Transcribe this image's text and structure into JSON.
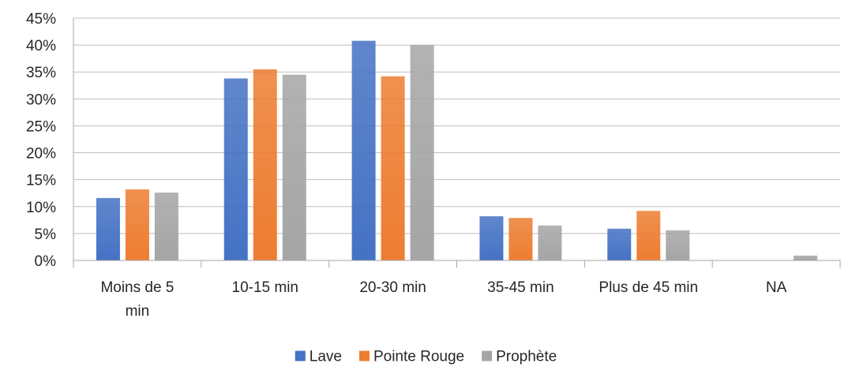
{
  "chart_data": {
    "type": "bar",
    "categories": [
      [
        "Moins de 5",
        "min"
      ],
      [
        "10-15 min"
      ],
      [
        "20-30 min"
      ],
      [
        "35-45 min"
      ],
      [
        "Plus de 45 min"
      ],
      [
        "NA"
      ]
    ],
    "series": [
      {
        "name": "Lave",
        "color": "#4472C4",
        "values": [
          11.6,
          33.8,
          40.8,
          8.2,
          5.9,
          0
        ]
      },
      {
        "name": "Pointe Rouge",
        "color": "#ED7D31",
        "values": [
          13.2,
          35.5,
          34.2,
          7.9,
          9.2,
          0
        ]
      },
      {
        "name": "Prophète",
        "color": "#A5A5A5",
        "values": [
          12.6,
          34.5,
          40.0,
          6.5,
          5.6,
          0.9
        ]
      }
    ],
    "yticks": [
      "0%",
      "5%",
      "10%",
      "15%",
      "20%",
      "25%",
      "30%",
      "35%",
      "40%",
      "45%"
    ],
    "ylim": [
      0,
      45
    ],
    "ystep": 5,
    "grid": true,
    "legend_position": "bottom",
    "title": "",
    "xlabel": "",
    "ylabel": ""
  }
}
